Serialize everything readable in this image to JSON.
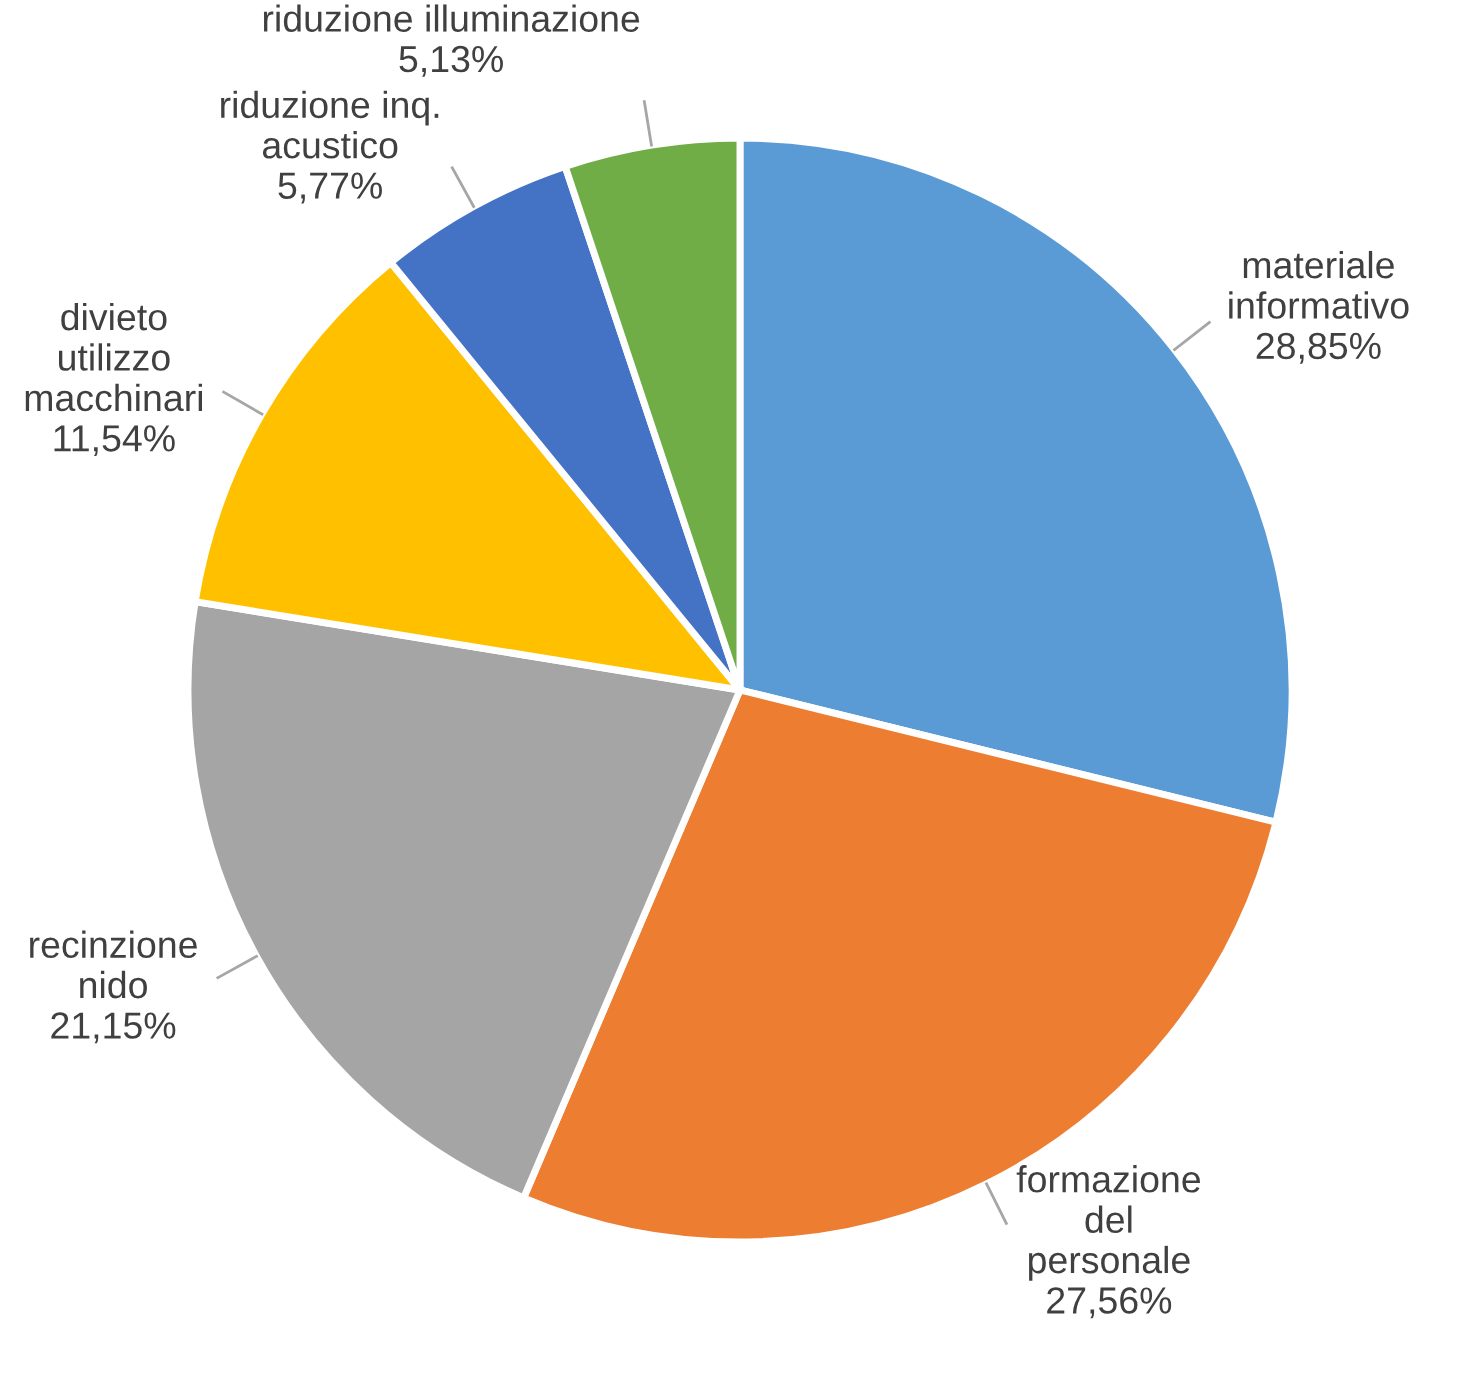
{
  "chart_data": {
    "type": "pie",
    "categories": [
      "materiale\ninformativo",
      "formazione\ndel\npersonale",
      "recinzione\nnido",
      "divieto\nutilizzo\nmacchinari",
      "riduzione inq.\nacustico",
      "riduzione illuminazione"
    ],
    "values": [
      28.85,
      27.56,
      21.15,
      11.54,
      5.77,
      5.13
    ],
    "value_labels": [
      "28,85%",
      "27,56%",
      "21,15%",
      "11,54%",
      "5,77%",
      "5,13%"
    ],
    "colors": [
      "#5b9bd5",
      "#ed7d31",
      "#a5a5a5",
      "#ffc000",
      "#4472c4",
      "#70ad47"
    ],
    "legend": false
  }
}
